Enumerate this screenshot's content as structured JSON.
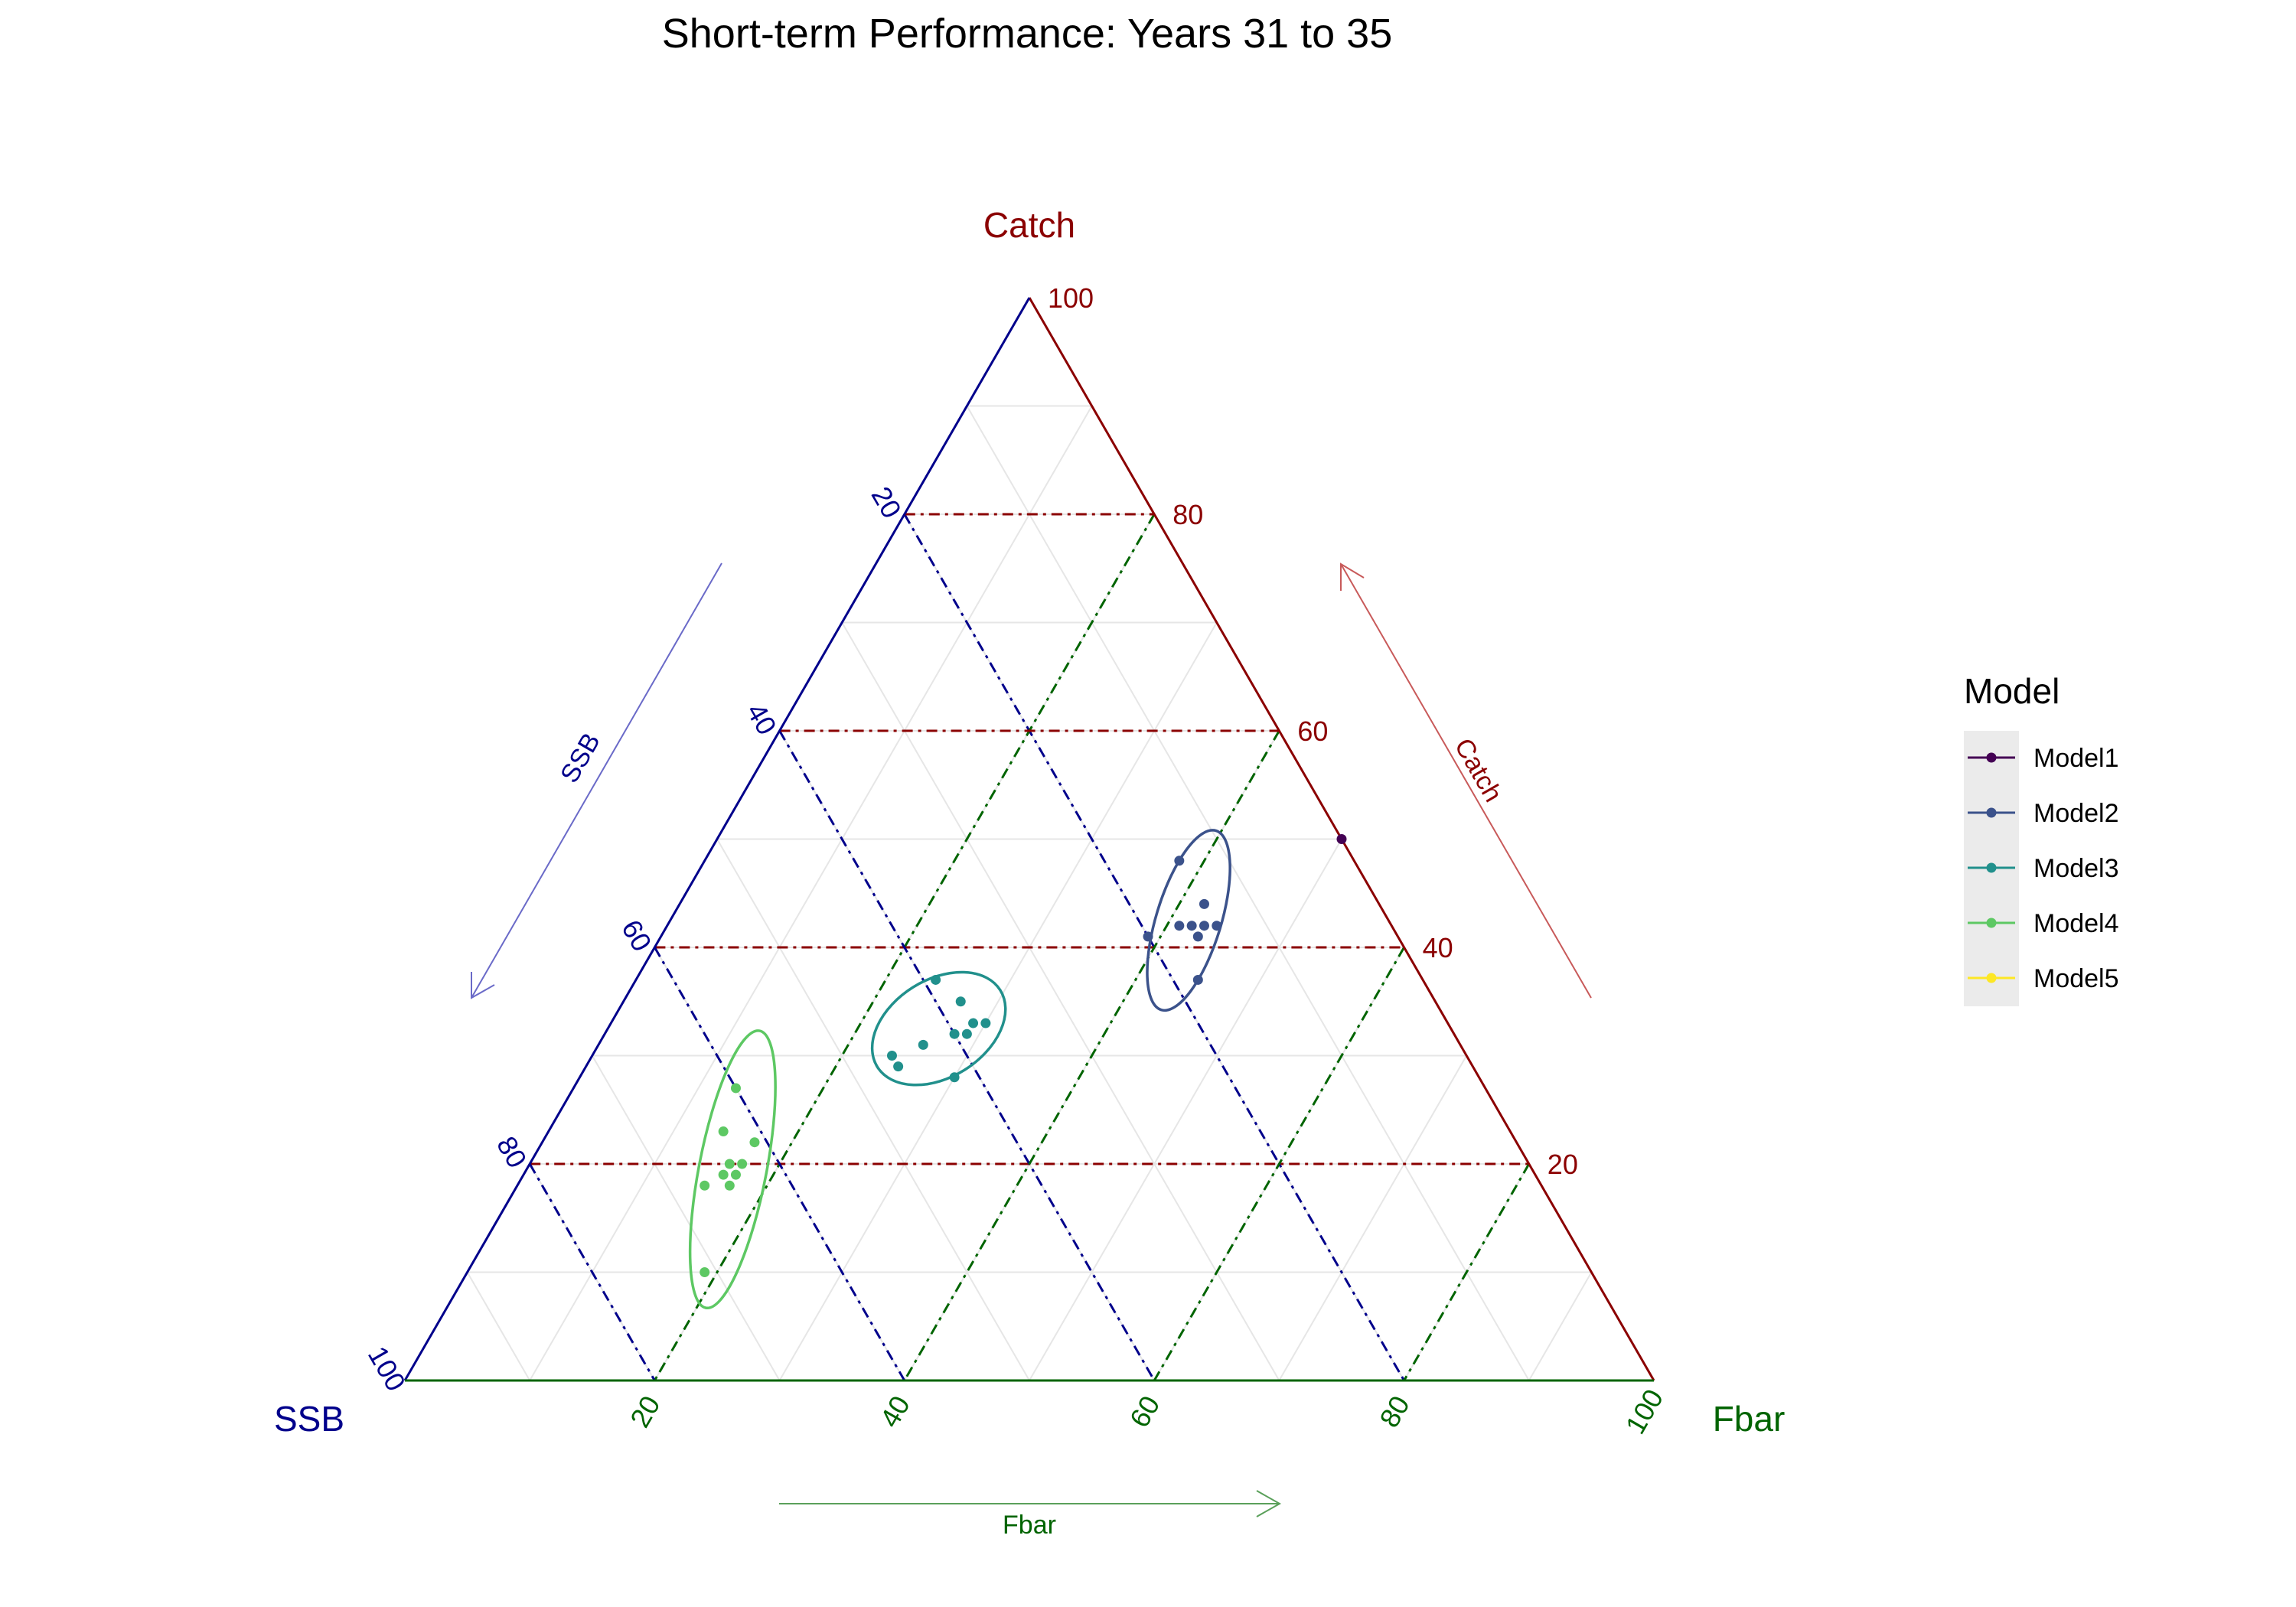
{
  "chart_data": {
    "type": "ternary-scatter",
    "title": "Short-term Performance: Years 31 to 35",
    "axes": {
      "top": {
        "label": "Catch",
        "arrow_label": "Catch",
        "color": "#8B0000"
      },
      "left": {
        "label": "SSB",
        "arrow_label": "SSB",
        "color": "#00008B"
      },
      "right": {
        "label": "Fbar",
        "arrow_label": "Fbar",
        "color": "#006400"
      }
    },
    "ticks": [
      20,
      40,
      60,
      80,
      100
    ],
    "tick_labels": [
      "20",
      "40",
      "60",
      "80",
      "100"
    ],
    "reference_lines": [
      20,
      40,
      60,
      80
    ],
    "legend": {
      "title": "Model",
      "position": "right",
      "items": [
        {
          "name": "Model1",
          "color": "#440154"
        },
        {
          "name": "Model2",
          "color": "#3B528B"
        },
        {
          "name": "Model3",
          "color": "#21908C"
        },
        {
          "name": "Model4",
          "color": "#5DC863"
        },
        {
          "name": "Model5",
          "color": "#FDE725"
        }
      ]
    },
    "series": [
      {
        "name": "Model1",
        "color": "#440154",
        "points": [
          {
            "catch": 50,
            "ssb": 0,
            "fbar": 50
          }
        ]
      },
      {
        "name": "Model2",
        "color": "#3B528B",
        "points": [
          {
            "catch": 48,
            "ssb": 14,
            "fbar": 38
          },
          {
            "catch": 44,
            "ssb": 14,
            "fbar": 42
          },
          {
            "catch": 42,
            "ssb": 14,
            "fbar": 44
          },
          {
            "catch": 42,
            "ssb": 15,
            "fbar": 43
          },
          {
            "catch": 42,
            "ssb": 16,
            "fbar": 42
          },
          {
            "catch": 42,
            "ssb": 17,
            "fbar": 41
          },
          {
            "catch": 41,
            "ssb": 16,
            "fbar": 43
          },
          {
            "catch": 41,
            "ssb": 20,
            "fbar": 39
          },
          {
            "catch": 37,
            "ssb": 18,
            "fbar": 45
          }
        ],
        "ellipse": {
          "center": {
            "catch": 42.5,
            "ssb": 16,
            "fbar": 41.5
          },
          "semi_major": 7.5,
          "semi_minor": 2.6,
          "angle_deg": 73
        }
      },
      {
        "name": "Model3",
        "color": "#21908C",
        "points": [
          {
            "catch": 37,
            "ssb": 39,
            "fbar": 24
          },
          {
            "catch": 35,
            "ssb": 38,
            "fbar": 27
          },
          {
            "catch": 33,
            "ssb": 37,
            "fbar": 30
          },
          {
            "catch": 33,
            "ssb": 38,
            "fbar": 29
          },
          {
            "catch": 32,
            "ssb": 39,
            "fbar": 29
          },
          {
            "catch": 32,
            "ssb": 40,
            "fbar": 28
          },
          {
            "catch": 31,
            "ssb": 43,
            "fbar": 26
          },
          {
            "catch": 30,
            "ssb": 46,
            "fbar": 24
          },
          {
            "catch": 29,
            "ssb": 46,
            "fbar": 25
          },
          {
            "catch": 28,
            "ssb": 42,
            "fbar": 30
          }
        ],
        "ellipse": {
          "center": {
            "catch": 32.5,
            "ssb": 41,
            "fbar": 26.5
          },
          "semi_major": 5.8,
          "semi_minor": 3.9,
          "angle_deg": 32
        }
      },
      {
        "name": "Model4",
        "color": "#5DC863",
        "points": [
          {
            "catch": 27,
            "ssb": 60,
            "fbar": 13
          },
          {
            "catch": 22,
            "ssb": 61,
            "fbar": 17
          },
          {
            "catch": 23,
            "ssb": 63,
            "fbar": 14
          },
          {
            "catch": 20,
            "ssb": 63,
            "fbar": 17
          },
          {
            "catch": 20,
            "ssb": 64,
            "fbar": 16
          },
          {
            "catch": 19,
            "ssb": 64,
            "fbar": 17
          },
          {
            "catch": 19,
            "ssb": 65,
            "fbar": 16
          },
          {
            "catch": 18,
            "ssb": 65,
            "fbar": 17
          },
          {
            "catch": 18,
            "ssb": 67,
            "fbar": 15
          },
          {
            "catch": 10,
            "ssb": 71,
            "fbar": 19
          }
        ],
        "ellipse": {
          "center": {
            "catch": 19.5,
            "ssb": 64,
            "fbar": 16.5
          },
          "semi_major": 11.3,
          "semi_minor": 2.7,
          "angle_deg": 79
        }
      },
      {
        "name": "Model5",
        "color": "#FDE725",
        "points": []
      }
    ]
  }
}
